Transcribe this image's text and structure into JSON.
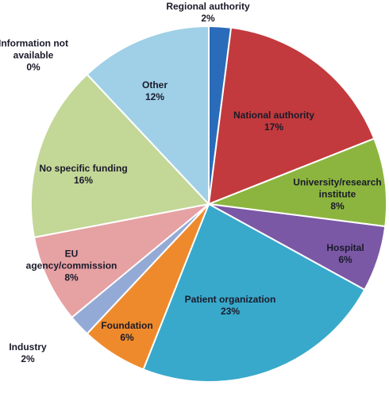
{
  "chart_data": {
    "type": "pie",
    "categories": [
      "Regional authority",
      "National authority",
      "University/research institute",
      "Hospital",
      "Patient organization",
      "Foundation",
      "Industry",
      "EU agency/commission",
      "No specific funding",
      "Information not available",
      "Other"
    ],
    "values": [
      2,
      17,
      8,
      6,
      23,
      6,
      2,
      8,
      16,
      0,
      12
    ],
    "value_labels": [
      "2%",
      "17%",
      "8%",
      "6%",
      "23%",
      "6%",
      "2%",
      "8%",
      "16%",
      "0%",
      "12%"
    ],
    "colors": [
      "#2b6cba",
      "#c23a3d",
      "#8cb53f",
      "#7a58a5",
      "#38a9cb",
      "#ee8a2c",
      "#94aad6",
      "#e6a1a3",
      "#c3d797",
      "#6a8fc4",
      "#9fd0e7"
    ]
  }
}
